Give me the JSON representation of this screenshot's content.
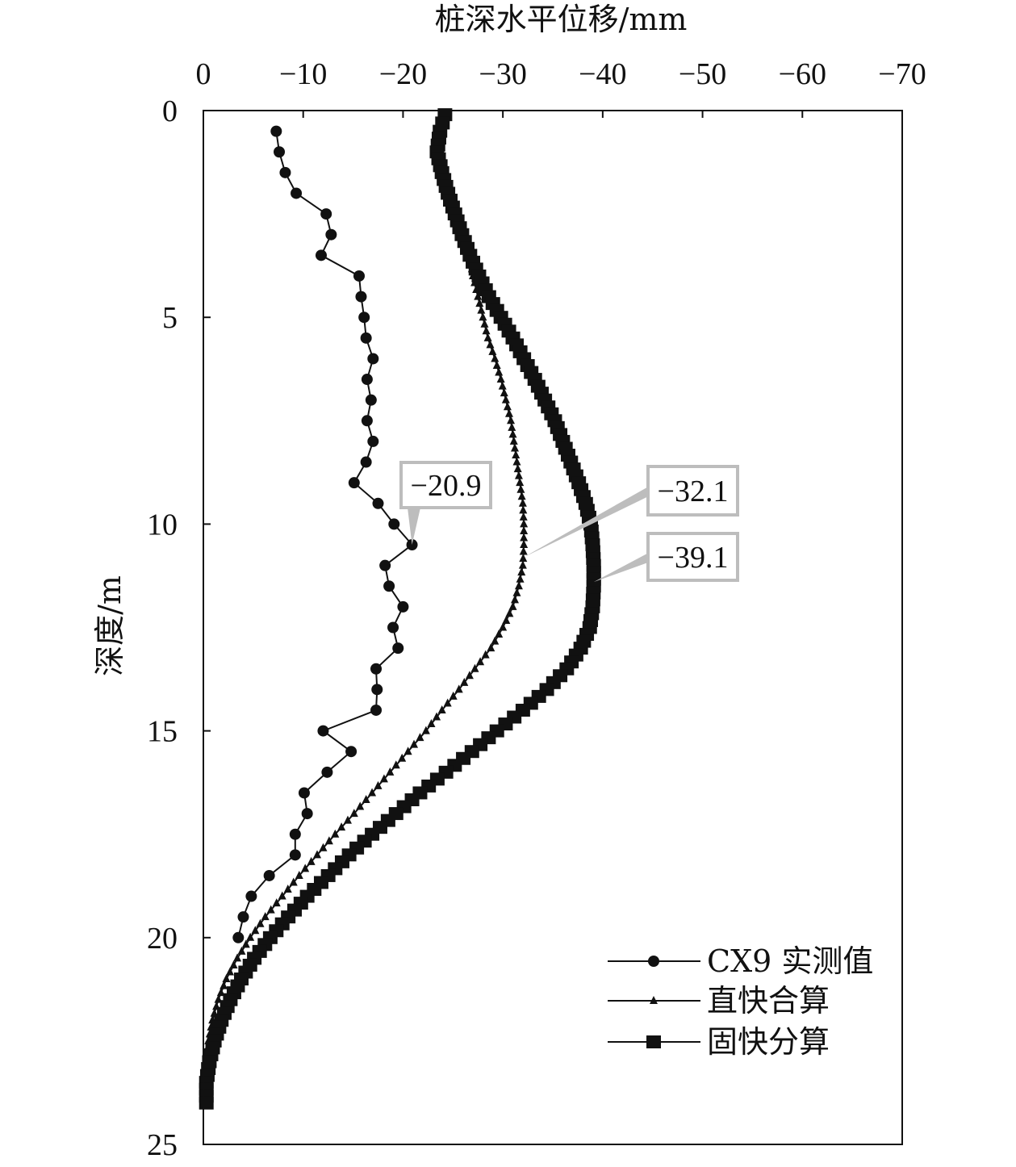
{
  "chart_data": {
    "type": "line",
    "title": "",
    "xlabel": "桩深水平位移/mm",
    "ylabel": "深度/m",
    "xlim": [
      0,
      -70
    ],
    "ylim": [
      0,
      25
    ],
    "x_axis_position": "top",
    "y_axis_inverted": true,
    "x_ticks": [
      0,
      -10,
      -20,
      -30,
      -40,
      -50,
      -60,
      -70
    ],
    "x_tick_labels": [
      "0",
      "−10",
      "−20",
      "−30",
      "−40",
      "−50",
      "−60",
      "−70"
    ],
    "y_ticks": [
      0,
      5,
      10,
      15,
      20,
      25
    ],
    "y_tick_labels": [
      "0",
      "5",
      "10",
      "15",
      "20",
      "25"
    ],
    "grid": false,
    "legend_position": "bottom-right",
    "series": [
      {
        "name": "CX9 实测值",
        "marker": "circle",
        "points": [
          [
            -7.3,
            0.5
          ],
          [
            -7.6,
            1.0
          ],
          [
            -8.2,
            1.5
          ],
          [
            -9.3,
            2.0
          ],
          [
            -12.3,
            2.5
          ],
          [
            -12.8,
            3.0
          ],
          [
            -11.8,
            3.5
          ],
          [
            -15.6,
            4.0
          ],
          [
            -15.8,
            4.5
          ],
          [
            -16.1,
            5.0
          ],
          [
            -16.3,
            5.5
          ],
          [
            -17.0,
            6.0
          ],
          [
            -16.4,
            6.5
          ],
          [
            -16.8,
            7.0
          ],
          [
            -16.4,
            7.5
          ],
          [
            -17.0,
            8.0
          ],
          [
            -16.3,
            8.5
          ],
          [
            -15.1,
            9.0
          ],
          [
            -17.5,
            9.5
          ],
          [
            -19.1,
            10.0
          ],
          [
            -20.9,
            10.5
          ],
          [
            -18.2,
            11.0
          ],
          [
            -18.6,
            11.5
          ],
          [
            -20.0,
            12.0
          ],
          [
            -19.0,
            12.5
          ],
          [
            -19.5,
            13.0
          ],
          [
            -17.3,
            13.5
          ],
          [
            -17.4,
            14.0
          ],
          [
            -17.3,
            14.5
          ],
          [
            -12.0,
            15.0
          ],
          [
            -14.8,
            15.5
          ],
          [
            -12.4,
            16.0
          ],
          [
            -10.1,
            16.5
          ],
          [
            -10.4,
            17.0
          ],
          [
            -9.2,
            17.5
          ],
          [
            -9.2,
            18.0
          ],
          [
            -6.6,
            18.5
          ],
          [
            -4.8,
            19.0
          ],
          [
            -4.0,
            19.5
          ],
          [
            -3.5,
            20.0
          ]
        ]
      },
      {
        "name": "直快合算",
        "marker": "triangle",
        "points": [
          [
            -23.5,
            0.5
          ],
          [
            -23.7,
            1.0
          ],
          [
            -24.2,
            1.5
          ],
          [
            -24.9,
            2.0
          ],
          [
            -25.6,
            2.5
          ],
          [
            -26.2,
            3.0
          ],
          [
            -26.7,
            3.5
          ],
          [
            -27.0,
            4.0
          ],
          [
            -27.5,
            4.5
          ],
          [
            -28.0,
            5.0
          ],
          [
            -28.5,
            5.5
          ],
          [
            -29.2,
            6.0
          ],
          [
            -29.8,
            6.5
          ],
          [
            -30.3,
            7.0
          ],
          [
            -30.8,
            7.5
          ],
          [
            -31.1,
            8.0
          ],
          [
            -31.4,
            8.5
          ],
          [
            -31.7,
            9.0
          ],
          [
            -32.0,
            9.5
          ],
          [
            -32.1,
            10.0
          ],
          [
            -32.1,
            10.5
          ],
          [
            -32.0,
            11.0
          ],
          [
            -31.6,
            11.5
          ],
          [
            -31.0,
            12.0
          ],
          [
            -30.0,
            12.5
          ],
          [
            -28.8,
            13.0
          ],
          [
            -27.2,
            13.5
          ],
          [
            -25.6,
            14.0
          ],
          [
            -23.9,
            14.5
          ],
          [
            -22.3,
            15.0
          ],
          [
            -20.5,
            15.5
          ],
          [
            -18.7,
            16.0
          ],
          [
            -16.9,
            16.5
          ],
          [
            -15.1,
            17.0
          ],
          [
            -13.2,
            17.5
          ],
          [
            -11.4,
            18.0
          ],
          [
            -9.6,
            18.5
          ],
          [
            -7.9,
            19.0
          ],
          [
            -6.2,
            19.5
          ],
          [
            -4.7,
            20.0
          ],
          [
            -3.4,
            20.5
          ],
          [
            -2.3,
            21.0
          ],
          [
            -1.5,
            21.5
          ],
          [
            -0.9,
            22.0
          ],
          [
            -0.5,
            22.5
          ],
          [
            -0.3,
            23.0
          ],
          [
            -0.2,
            23.5
          ],
          [
            -0.2,
            24.0
          ]
        ]
      },
      {
        "name": "固快分算",
        "marker": "square",
        "points": [
          [
            -24.2,
            0.1
          ],
          [
            -23.7,
            0.5
          ],
          [
            -23.4,
            1.0
          ],
          [
            -23.9,
            1.5
          ],
          [
            -24.5,
            2.0
          ],
          [
            -25.2,
            2.5
          ],
          [
            -25.9,
            3.0
          ],
          [
            -26.7,
            3.5
          ],
          [
            -27.6,
            4.0
          ],
          [
            -28.6,
            4.5
          ],
          [
            -29.8,
            5.0
          ],
          [
            -31.0,
            5.5
          ],
          [
            -32.1,
            6.0
          ],
          [
            -33.2,
            6.5
          ],
          [
            -34.2,
            7.0
          ],
          [
            -35.2,
            7.5
          ],
          [
            -36.0,
            8.0
          ],
          [
            -36.8,
            8.5
          ],
          [
            -37.6,
            9.0
          ],
          [
            -38.3,
            9.5
          ],
          [
            -38.8,
            10.0
          ],
          [
            -39.0,
            10.5
          ],
          [
            -39.1,
            11.0
          ],
          [
            -39.1,
            11.5
          ],
          [
            -39.0,
            12.0
          ],
          [
            -38.7,
            12.5
          ],
          [
            -37.8,
            13.0
          ],
          [
            -36.4,
            13.5
          ],
          [
            -34.4,
            14.0
          ],
          [
            -32.0,
            14.5
          ],
          [
            -29.4,
            15.0
          ],
          [
            -26.9,
            15.5
          ],
          [
            -24.3,
            16.0
          ],
          [
            -21.7,
            16.5
          ],
          [
            -19.3,
            17.0
          ],
          [
            -16.9,
            17.5
          ],
          [
            -14.6,
            18.0
          ],
          [
            -12.5,
            18.5
          ],
          [
            -10.4,
            19.0
          ],
          [
            -8.5,
            19.5
          ],
          [
            -6.7,
            20.0
          ],
          [
            -5.1,
            20.5
          ],
          [
            -3.8,
            21.0
          ],
          [
            -2.7,
            21.5
          ],
          [
            -1.8,
            22.0
          ],
          [
            -1.1,
            22.5
          ],
          [
            -0.6,
            23.0
          ],
          [
            -0.3,
            23.5
          ],
          [
            -0.3,
            24.0
          ]
        ]
      }
    ],
    "annotations": [
      {
        "text": "−20.9",
        "x": -20.9,
        "y": 10.5,
        "series": "CX9 实测值"
      },
      {
        "text": "−32.1",
        "x": -32.1,
        "y": 10.8,
        "series": "直快合算"
      },
      {
        "text": "−39.1",
        "x": -39.1,
        "y": 11.4,
        "series": "固快分算"
      }
    ]
  }
}
